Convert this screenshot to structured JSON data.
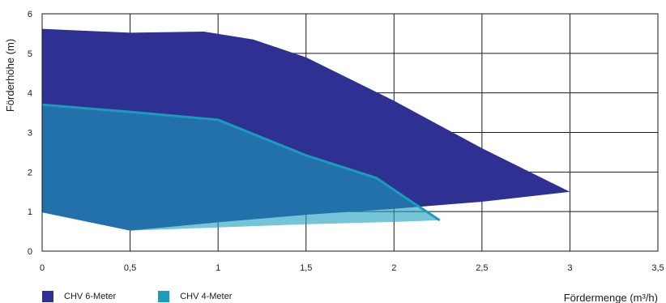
{
  "chart_data": {
    "type": "area",
    "title": "",
    "xlabel": "Fördermenge (m³/h)",
    "ylabel": "Förderhöhe (m)",
    "xlim": [
      0,
      3.5
    ],
    "ylim": [
      0,
      6
    ],
    "x_ticks": [
      "0",
      "0,5",
      "1",
      "1,5",
      "2",
      "2,5",
      "3",
      "3,5"
    ],
    "y_ticks": [
      "0",
      "1",
      "2",
      "3",
      "4",
      "5",
      "6"
    ],
    "grid": true,
    "legend_position": "bottom-left",
    "series": [
      {
        "name": "CHV 6-Meter",
        "color": "#2e3192",
        "upper": [
          [
            0,
            5.62
          ],
          [
            0.5,
            5.52
          ],
          [
            0.92,
            5.55
          ],
          [
            1.2,
            5.35
          ],
          [
            1.5,
            4.9
          ],
          [
            2.0,
            3.8
          ],
          [
            2.5,
            2.6
          ],
          [
            3.0,
            1.5
          ]
        ],
        "lower": [
          [
            0,
            0.98
          ],
          [
            0.5,
            0.52
          ],
          [
            1.0,
            0.73
          ],
          [
            1.5,
            0.92
          ],
          [
            2.0,
            1.07
          ],
          [
            2.5,
            1.25
          ],
          [
            3.0,
            1.5
          ]
        ]
      },
      {
        "name": "CHV 4-Meter",
        "color": "#1a9cbc",
        "upper": [
          [
            0,
            3.7
          ],
          [
            0.5,
            3.52
          ],
          [
            1.0,
            3.32
          ],
          [
            1.5,
            2.42
          ],
          [
            1.9,
            1.85
          ],
          [
            2.1,
            1.25
          ],
          [
            2.26,
            0.78
          ]
        ],
        "lower": [
          [
            0,
            0.98
          ],
          [
            0.5,
            0.52
          ],
          [
            1.0,
            0.6
          ],
          [
            1.5,
            0.68
          ],
          [
            2.0,
            0.74
          ],
          [
            2.26,
            0.78
          ]
        ]
      }
    ]
  }
}
